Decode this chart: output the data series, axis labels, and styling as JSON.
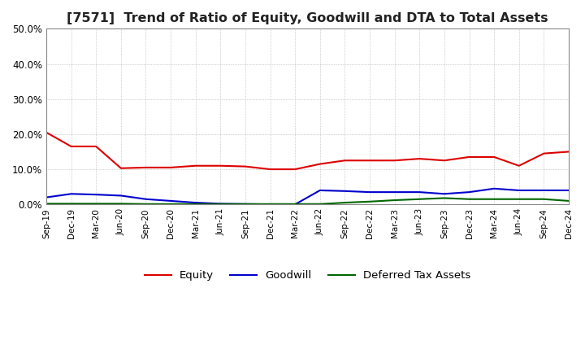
{
  "title": "[7571]  Trend of Ratio of Equity, Goodwill and DTA to Total Assets",
  "xlabels": [
    "Sep-19",
    "Dec-19",
    "Mar-20",
    "Jun-20",
    "Sep-20",
    "Dec-20",
    "Mar-21",
    "Jun-21",
    "Sep-21",
    "Dec-21",
    "Mar-22",
    "Jun-22",
    "Sep-22",
    "Dec-22",
    "Mar-23",
    "Jun-23",
    "Sep-23",
    "Dec-23",
    "Mar-24",
    "Jun-24",
    "Sep-24",
    "Dec-24"
  ],
  "equity": [
    20.5,
    16.5,
    16.5,
    10.3,
    10.5,
    10.5,
    11.0,
    11.0,
    10.8,
    10.0,
    10.0,
    11.5,
    12.5,
    12.5,
    12.5,
    13.0,
    12.5,
    13.5,
    13.5,
    11.0,
    14.5,
    15.0
  ],
  "goodwill": [
    2.0,
    3.0,
    2.8,
    2.5,
    1.5,
    1.0,
    0.5,
    0.2,
    0.1,
    0.0,
    0.0,
    4.0,
    3.8,
    3.5,
    3.5,
    3.5,
    3.0,
    3.5,
    4.5,
    4.0,
    4.0,
    4.0
  ],
  "dta": [
    0.2,
    0.2,
    0.2,
    0.2,
    0.1,
    0.1,
    0.1,
    0.1,
    0.1,
    0.1,
    0.1,
    0.1,
    0.5,
    0.8,
    1.2,
    1.5,
    1.8,
    1.5,
    1.5,
    1.5,
    1.5,
    1.0
  ],
  "equity_color": "#dd0000",
  "goodwill_color": "#0000cc",
  "dta_color": "#006600",
  "ylim": [
    0,
    50
  ],
  "yticks": [
    0,
    10,
    20,
    30,
    40,
    50
  ],
  "background_color": "#ffffff",
  "grid_color": "#aaaaaa",
  "title_fontsize": 11.5
}
